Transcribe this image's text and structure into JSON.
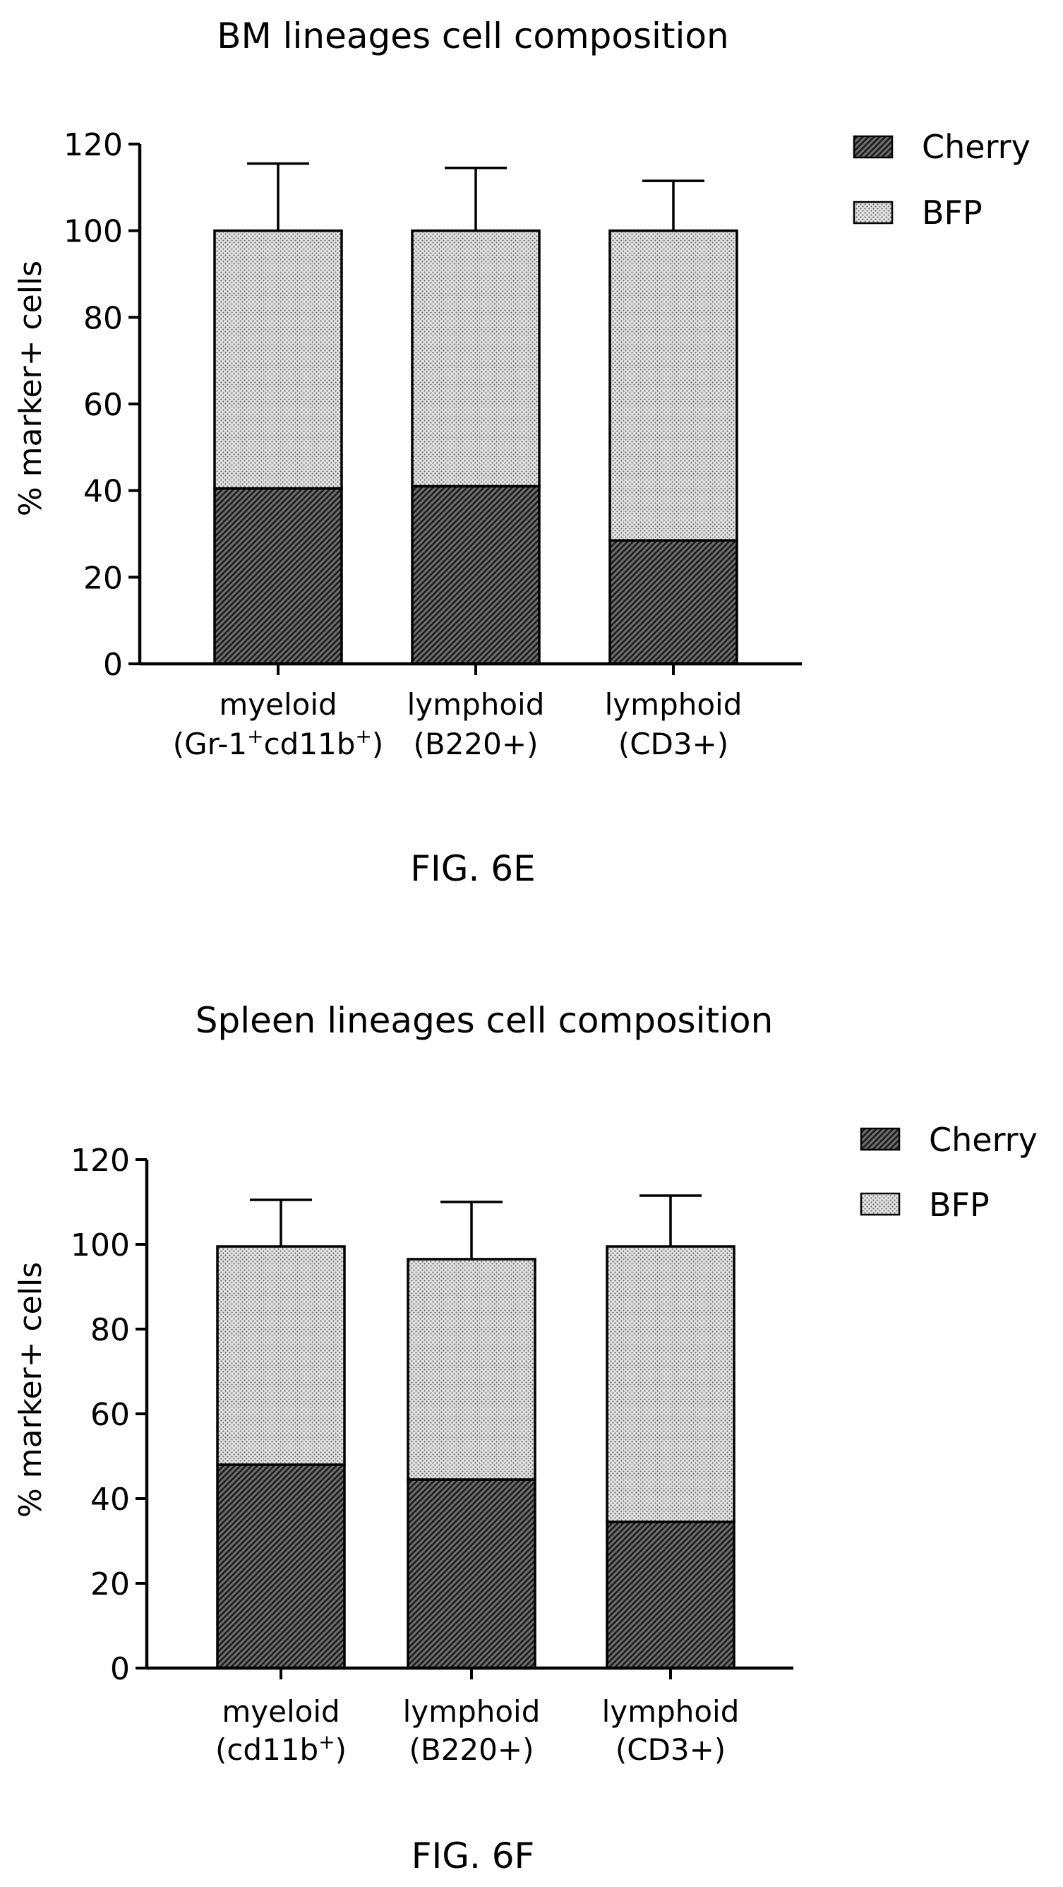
{
  "chart_data": [
    {
      "type": "bar",
      "stacked": true,
      "title": "BM lineages cell composition",
      "ylabel": "% marker+ cells",
      "xlabel": "",
      "ylim": [
        0,
        120
      ],
      "yticks": [
        0,
        20,
        40,
        60,
        80,
        100,
        120
      ],
      "categories": [
        {
          "line1": "myeloid",
          "line2_pre": "(Gr-1",
          "line2_sup1": "+",
          "line2_mid": "cd11b",
          "line2_sup2": "+",
          "line2_post": ")"
        },
        {
          "line1": "lymphoid",
          "line2_pre": "(B220+)",
          "line2_sup1": "",
          "line2_mid": "",
          "line2_sup2": "",
          "line2_post": ""
        },
        {
          "line1": "lymphoid",
          "line2_pre": "(CD3+)",
          "line2_sup1": "",
          "line2_mid": "",
          "line2_sup2": "",
          "line2_post": ""
        }
      ],
      "series": [
        {
          "name": "Cherry",
          "pattern": "hatch",
          "values": [
            40.5,
            41,
            28.5
          ],
          "error": [
            15.5,
            15,
            11.5
          ]
        },
        {
          "name": "BFP",
          "pattern": "dots",
          "values": [
            59.5,
            59,
            71.5
          ],
          "error": [
            15.5,
            14.5,
            11.5
          ]
        }
      ],
      "legend": "top-right",
      "grid": false,
      "caption": "FIG. 6E"
    },
    {
      "type": "bar",
      "stacked": true,
      "title": "Spleen lineages cell composition",
      "ylabel": "% marker+ cells",
      "xlabel": "",
      "ylim": [
        0,
        120
      ],
      "yticks": [
        0,
        20,
        40,
        60,
        80,
        100,
        120
      ],
      "categories": [
        {
          "line1": "myeloid",
          "line2_pre": "(cd11b",
          "line2_sup1": "+",
          "line2_mid": ")",
          "line2_sup2": "",
          "line2_post": ""
        },
        {
          "line1": "lymphoid",
          "line2_pre": "(B220+)",
          "line2_sup1": "",
          "line2_mid": "",
          "line2_sup2": "",
          "line2_post": ""
        },
        {
          "line1": "lymphoid",
          "line2_pre": "(CD3+)",
          "line2_sup1": "",
          "line2_mid": "",
          "line2_sup2": "",
          "line2_post": ""
        }
      ],
      "series": [
        {
          "name": "Cherry",
          "pattern": "hatch",
          "values": [
            48,
            44.5,
            34.5
          ],
          "error": [
            11.5,
            12.5,
            12
          ]
        },
        {
          "name": "BFP",
          "pattern": "dots",
          "values": [
            51.5,
            52,
            65
          ],
          "error": [
            11,
            13.5,
            12
          ]
        }
      ],
      "legend": "top-right",
      "grid": false,
      "caption": "FIG. 6F"
    }
  ]
}
